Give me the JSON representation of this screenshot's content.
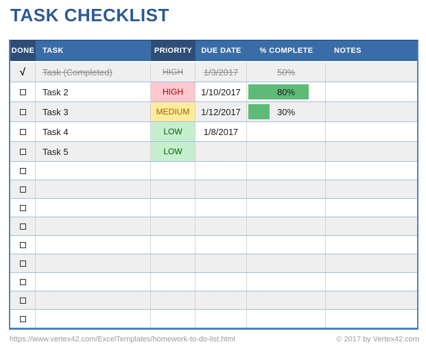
{
  "title": "TASK CHECKLIST",
  "colors": {
    "title_blue": "#2C5A97",
    "header_blue": "#3A6DA7",
    "header_dark_blue": "#2E4E79",
    "outer_border_blue": "#4F81BD",
    "grid_blue": "#A3BDDE",
    "row_alt_gray": "#EFEFEF",
    "priority_high_bg": "#FFC7CE",
    "priority_high_text": "#9C0006",
    "priority_medium_bg": "#FFEB9C",
    "priority_medium_text": "#9C6500",
    "priority_low_bg": "#C6EFCE",
    "priority_low_text": "#006100",
    "progress_bar_green": "#5DBB77"
  },
  "table": {
    "headers": [
      "DONE",
      "TASK",
      "PRIORITY",
      "DUE DATE",
      "% COMPLETE",
      "NOTES"
    ],
    "rows": [
      {
        "done": "√",
        "task": "Task (Completed)",
        "priority": "HIGH",
        "due_date": "1/3/2017",
        "percent": "50%",
        "bar": null,
        "notes": "",
        "state": "completed",
        "priority_level": ""
      },
      {
        "done": "□",
        "task": "Task 2",
        "priority": "HIGH",
        "due_date": "1/10/2017",
        "percent": "80%",
        "bar": 80,
        "notes": "",
        "state": "active",
        "priority_level": "high"
      },
      {
        "done": "□",
        "task": "Task 3",
        "priority": "MEDIUM",
        "due_date": "1/12/2017",
        "percent": "30%",
        "bar": 30,
        "notes": "",
        "state": "active",
        "priority_level": "medium"
      },
      {
        "done": "□",
        "task": "Task 4",
        "priority": "LOW",
        "due_date": "1/8/2017",
        "percent": "",
        "bar": null,
        "notes": "",
        "state": "active",
        "priority_level": "low"
      },
      {
        "done": "□",
        "task": "Task 5",
        "priority": "LOW",
        "due_date": "",
        "percent": "",
        "bar": null,
        "notes": "",
        "state": "active",
        "priority_level": "low"
      },
      {
        "done": "□",
        "task": "",
        "priority": "",
        "due_date": "",
        "percent": "",
        "bar": null,
        "notes": "",
        "state": "empty",
        "priority_level": ""
      },
      {
        "done": "□",
        "task": "",
        "priority": "",
        "due_date": "",
        "percent": "",
        "bar": null,
        "notes": "",
        "state": "empty",
        "priority_level": ""
      },
      {
        "done": "□",
        "task": "",
        "priority": "",
        "due_date": "",
        "percent": "",
        "bar": null,
        "notes": "",
        "state": "empty",
        "priority_level": ""
      },
      {
        "done": "□",
        "task": "",
        "priority": "",
        "due_date": "",
        "percent": "",
        "bar": null,
        "notes": "",
        "state": "empty",
        "priority_level": ""
      },
      {
        "done": "□",
        "task": "",
        "priority": "",
        "due_date": "",
        "percent": "",
        "bar": null,
        "notes": "",
        "state": "empty",
        "priority_level": ""
      },
      {
        "done": "□",
        "task": "",
        "priority": "",
        "due_date": "",
        "percent": "",
        "bar": null,
        "notes": "",
        "state": "empty",
        "priority_level": ""
      },
      {
        "done": "□",
        "task": "",
        "priority": "",
        "due_date": "",
        "percent": "",
        "bar": null,
        "notes": "",
        "state": "empty",
        "priority_level": ""
      },
      {
        "done": "□",
        "task": "",
        "priority": "",
        "due_date": "",
        "percent": "",
        "bar": null,
        "notes": "",
        "state": "empty",
        "priority_level": ""
      },
      {
        "done": "□",
        "task": "",
        "priority": "",
        "due_date": "",
        "percent": "",
        "bar": null,
        "notes": "",
        "state": "empty",
        "priority_level": ""
      }
    ]
  },
  "footer": {
    "url": "https://www.vertex42.com/ExcelTemplates/homework-to-do-list.html",
    "copyright": "© 2017 by Vertex42.com"
  }
}
